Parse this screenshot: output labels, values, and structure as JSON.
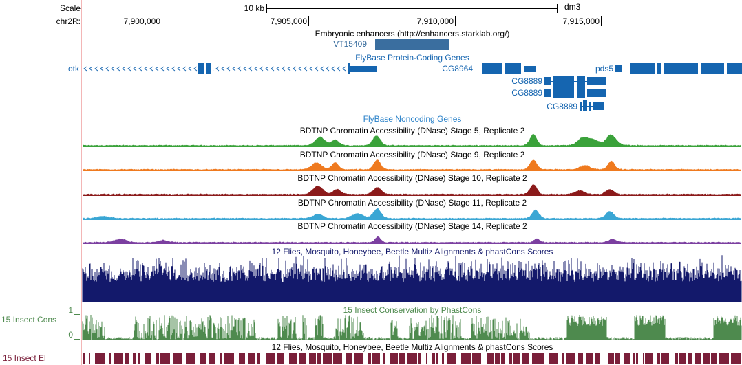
{
  "browser": {
    "scale_label": "Scale",
    "chrom_label": "chr2R:",
    "scale_bar_label": "10 kb",
    "assembly": "dm3"
  },
  "ruler": {
    "ticks": [
      "7,900,000",
      "7,905,000",
      "7,910,000",
      "7,915,000"
    ]
  },
  "tracks": {
    "enhancers": {
      "title": "Embryonic enhancers (http://enhancers.starklab.org/)",
      "feature": "VT15409",
      "color": "#3a6e9f"
    },
    "protein_genes": {
      "title": "FlyBase Protein-Coding Genes",
      "genes": [
        "otk",
        "CG8964",
        "pds5",
        "CG8889",
        "CG8889",
        "CG8889"
      ],
      "color": "#1565b0"
    },
    "noncoding": {
      "title": "FlyBase Noncoding Genes",
      "color": "#2b82c9"
    },
    "dnase": [
      {
        "title": "BDTNP Chromatin Accessibility (DNase) Stage 5, Replicate 2",
        "color": "#3aa23a"
      },
      {
        "title": "BDTNP Chromatin Accessibility (DNase) Stage 9, Replicate 2",
        "color": "#ef7a1f"
      },
      {
        "title": "BDTNP Chromatin Accessibility (DNase) Stage 10, Replicate 2",
        "color": "#8b1a1a"
      },
      {
        "title": "BDTNP Chromatin Accessibility (DNase) Stage 11, Replicate 2",
        "color": "#3aa6d4"
      },
      {
        "title": "BDTNP Chromatin Accessibility (DNase) Stage 14, Replicate 2",
        "color": "#7b3fa0"
      }
    ],
    "multiz": {
      "title": "12 Flies, Mosquito, Honeybee, Beetle Multiz Alignments & phastCons Scores",
      "color": "#13196b"
    },
    "insect_cons": {
      "title": "15 Insect Conservation by PhastCons",
      "side_label": "15 Insect Cons",
      "axis_max": "1",
      "axis_min": "0",
      "color": "#4e8a4e"
    },
    "insect_el": {
      "title": "12 Flies, Mosquito, Honeybee, Beetle Multiz Alignments & phastCons Scores",
      "side_label": "15 Insect El",
      "color": "#7a1f3a"
    }
  }
}
